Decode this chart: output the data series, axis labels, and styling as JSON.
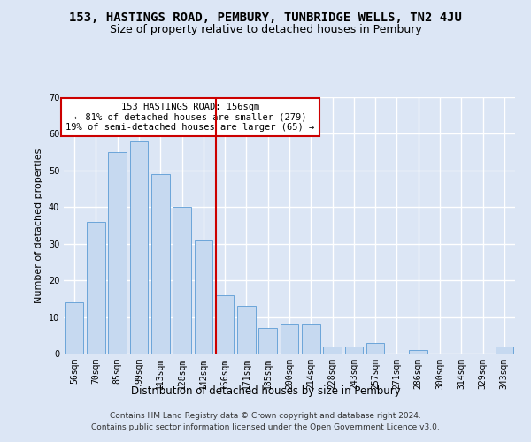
{
  "title": "153, HASTINGS ROAD, PEMBURY, TUNBRIDGE WELLS, TN2 4JU",
  "subtitle": "Size of property relative to detached houses in Pembury",
  "xlabel": "Distribution of detached houses by size in Pembury",
  "ylabel": "Number of detached properties",
  "categories": [
    "56sqm",
    "70sqm",
    "85sqm",
    "99sqm",
    "113sqm",
    "128sqm",
    "142sqm",
    "156sqm",
    "171sqm",
    "185sqm",
    "200sqm",
    "214sqm",
    "228sqm",
    "243sqm",
    "257sqm",
    "271sqm",
    "286sqm",
    "300sqm",
    "314sqm",
    "329sqm",
    "343sqm"
  ],
  "values": [
    14,
    36,
    55,
    58,
    49,
    40,
    31,
    16,
    13,
    7,
    8,
    8,
    2,
    2,
    3,
    0,
    1,
    0,
    0,
    0,
    2
  ],
  "bar_color": "#c6d9f0",
  "bar_edge_color": "#5b9bd5",
  "highlight_index": 7,
  "highlight_line_color": "#cc0000",
  "annotation_line1": "153 HASTINGS ROAD: 156sqm",
  "annotation_line2": "← 81% of detached houses are smaller (279)",
  "annotation_line3": "19% of semi-detached houses are larger (65) →",
  "annotation_box_color": "#ffffff",
  "annotation_box_edge": "#cc0000",
  "ylim": [
    0,
    70
  ],
  "yticks": [
    0,
    10,
    20,
    30,
    40,
    50,
    60,
    70
  ],
  "background_color": "#dce6f5",
  "grid_color": "#ffffff",
  "footer_line1": "Contains HM Land Registry data © Crown copyright and database right 2024.",
  "footer_line2": "Contains public sector information licensed under the Open Government Licence v3.0.",
  "title_fontsize": 10,
  "subtitle_fontsize": 9,
  "xlabel_fontsize": 8.5,
  "ylabel_fontsize": 8,
  "tick_fontsize": 7,
  "footer_fontsize": 6.5,
  "annotation_fontsize": 7.5
}
